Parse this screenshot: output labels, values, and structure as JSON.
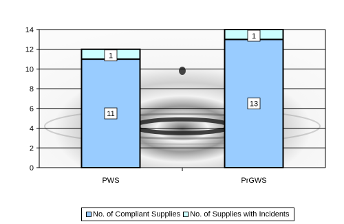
{
  "chart_data": {
    "type": "bar",
    "stacked": true,
    "categories": [
      "PWS",
      "PrGWS"
    ],
    "series": [
      {
        "name": "No. of Compliant Supplies",
        "values": [
          11,
          13
        ],
        "color": "#99ccff"
      },
      {
        "name": "No. of Supplies with Incidents",
        "values": [
          1,
          1
        ],
        "color": "#ccffff"
      }
    ],
    "ylim": [
      0,
      14
    ],
    "yticks": [
      0,
      2,
      4,
      6,
      8,
      10,
      12,
      14
    ],
    "grid": true,
    "legend_position": "bottom",
    "title": "",
    "xlabel": "",
    "ylabel": ""
  }
}
